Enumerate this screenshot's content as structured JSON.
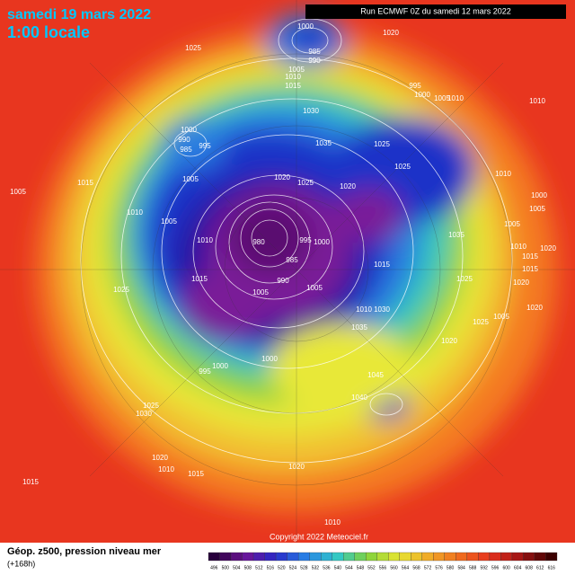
{
  "header": {
    "title": "samedi 19 mars 2022",
    "subtitle": "1:00 locale",
    "run": "Run ECMWF 0Z du samedi 12 mars 2022"
  },
  "isobar_labels": [
    1000,
    1020,
    1025,
    985,
    990,
    1005,
    1010,
    1015,
    995,
    1000,
    1005,
    1010,
    1010,
    1030,
    1000,
    990,
    995,
    985,
    1035,
    1025,
    1025,
    1010,
    1020,
    1025,
    1020,
    1015,
    1005,
    1005,
    1000,
    1005,
    1010,
    1005,
    1005,
    1035,
    1010,
    980,
    995,
    1000,
    1010,
    1020,
    985,
    1015,
    1015,
    1015,
    1015,
    1025,
    990,
    1005,
    1005,
    1025,
    1020,
    1020,
    1030,
    1010,
    1025,
    1005,
    1035,
    1020,
    1000,
    1000,
    995,
    1045,
    1040,
    1025,
    1030,
    1020,
    1010,
    1015,
    1020,
    1015,
    1010
  ],
  "footer": {
    "label": "Géop. z500, pression niveau mer",
    "lead": "(+168h)",
    "copyright": "Copyright 2022 Meteociel.fr"
  },
  "colorbar_ticks": [
    496,
    500,
    504,
    508,
    512,
    516,
    520,
    524,
    528,
    532,
    536,
    540,
    544,
    548,
    552,
    556,
    560,
    564,
    568,
    572,
    576,
    580,
    584,
    588,
    592,
    596,
    600,
    604,
    608,
    612,
    616
  ]
}
